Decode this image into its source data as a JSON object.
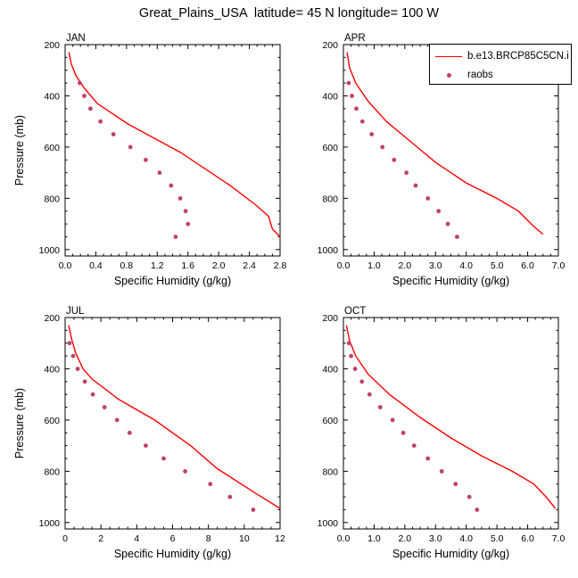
{
  "title": "Great_Plains_USA  latitude= 45 N longitude= 100 W",
  "colors": {
    "model": "#ff0000",
    "obs": "#c0406a"
  },
  "legend": {
    "placement": "top-right",
    "items": [
      {
        "label": "b.e13.BRCP85C5CN.i",
        "kind": "line",
        "color": "#ff0000"
      },
      {
        "label": "raobs",
        "kind": "marker",
        "color": "#c0406a"
      }
    ]
  },
  "chart_data": [
    {
      "type": "line",
      "panel_label": "JAN",
      "xlabel": "Specific Humidity (g/kg)",
      "ylabel": "Pressure (mb)",
      "xlim": [
        0,
        2.8
      ],
      "ylim": [
        1025,
        200
      ],
      "y_reversed": true,
      "xticks": [
        0,
        0.4,
        0.8,
        1.2,
        1.6,
        2.0,
        2.4,
        2.8
      ],
      "xticklabels": [
        "0.0",
        "0.4",
        "0.8",
        "1.2",
        "1.6",
        "2.0",
        "2.4",
        "2.8"
      ],
      "yticks": [
        200,
        400,
        600,
        800,
        1000
      ],
      "series": [
        {
          "name": "b.e13.BRCP85C5CN.i",
          "kind": "line",
          "x": [
            0.05,
            0.08,
            0.14,
            0.25,
            0.42,
            0.82,
            1.5,
            2.15,
            2.5,
            2.65,
            2.7,
            2.8
          ],
          "y": [
            230,
            275,
            320,
            370,
            430,
            510,
            620,
            750,
            830,
            870,
            920,
            950
          ]
        },
        {
          "name": "raobs",
          "kind": "marker",
          "x": [
            0.19,
            0.25,
            0.33,
            0.46,
            0.63,
            0.85,
            1.05,
            1.23,
            1.38,
            1.5,
            1.57,
            1.6,
            1.44
          ],
          "y": [
            350,
            400,
            450,
            500,
            550,
            600,
            650,
            700,
            750,
            800,
            850,
            900,
            950
          ]
        }
      ]
    },
    {
      "type": "line",
      "panel_label": "APR",
      "xlabel": "Specific Humidity (g/kg)",
      "ylabel": "",
      "xlim": [
        0,
        7
      ],
      "ylim": [
        1025,
        200
      ],
      "y_reversed": true,
      "xticks": [
        0,
        1,
        2,
        3,
        4,
        5,
        6,
        7
      ],
      "xticklabels": [
        "0.0",
        "1.0",
        "2.0",
        "3.0",
        "4.0",
        "5.0",
        "6.0",
        "7.0"
      ],
      "yticks": [
        200,
        400,
        600,
        800,
        1000
      ],
      "series": [
        {
          "name": "b.e13.BRCP85C5CN.i",
          "kind": "line",
          "x": [
            0.12,
            0.2,
            0.4,
            0.8,
            1.4,
            2.3,
            3.0,
            4.0,
            5.0,
            5.7,
            6.2,
            6.5
          ],
          "y": [
            230,
            290,
            350,
            420,
            500,
            590,
            660,
            740,
            800,
            850,
            910,
            940
          ]
        },
        {
          "name": "raobs",
          "kind": "marker",
          "x": [
            0.17,
            0.28,
            0.42,
            0.62,
            0.92,
            1.27,
            1.65,
            2.05,
            2.35,
            2.75,
            3.1,
            3.4,
            3.7
          ],
          "y": [
            350,
            400,
            450,
            500,
            550,
            600,
            650,
            700,
            750,
            800,
            850,
            900,
            950
          ]
        }
      ]
    },
    {
      "type": "line",
      "panel_label": "JUL",
      "xlabel": "Specific Humidity (g/kg)",
      "ylabel": "Pressure (mb)",
      "xlim": [
        0,
        12
      ],
      "ylim": [
        1025,
        200
      ],
      "y_reversed": true,
      "xticks": [
        0,
        2,
        4,
        6,
        8,
        10,
        12
      ],
      "xticklabels": [
        "0",
        "2",
        "4",
        "6",
        "8",
        "10",
        "12"
      ],
      "yticks": [
        200,
        400,
        600,
        800,
        1000
      ],
      "series": [
        {
          "name": "b.e13.BRCP85C5CN.i",
          "kind": "line",
          "x": [
            0.2,
            0.35,
            0.6,
            1.0,
            1.5,
            3.0,
            5.0,
            7.0,
            8.5,
            10.5,
            12.0
          ],
          "y": [
            230,
            280,
            340,
            400,
            440,
            520,
            600,
            700,
            790,
            880,
            945
          ]
        },
        {
          "name": "raobs",
          "kind": "marker",
          "x": [
            0.25,
            0.45,
            0.7,
            1.1,
            1.55,
            2.2,
            2.9,
            3.6,
            4.5,
            5.5,
            6.7,
            8.1,
            9.2,
            10.5
          ],
          "y": [
            300,
            350,
            400,
            450,
            500,
            550,
            600,
            650,
            700,
            750,
            800,
            850,
            900,
            950
          ]
        }
      ]
    },
    {
      "type": "line",
      "panel_label": "OCT",
      "xlabel": "Specific Humidity (g/kg)",
      "ylabel": "",
      "xlim": [
        0,
        7
      ],
      "ylim": [
        1025,
        200
      ],
      "y_reversed": true,
      "xticks": [
        0,
        1,
        2,
        3,
        4,
        5,
        6,
        7
      ],
      "xticklabels": [
        "0.0",
        "1.0",
        "2.0",
        "3.0",
        "4.0",
        "5.0",
        "6.0",
        "7.0"
      ],
      "yticks": [
        200,
        400,
        600,
        800,
        1000
      ],
      "series": [
        {
          "name": "b.e13.BRCP85C5CN.i",
          "kind": "line",
          "x": [
            0.1,
            0.2,
            0.4,
            0.8,
            1.5,
            2.5,
            3.5,
            4.5,
            5.5,
            6.2,
            6.6,
            6.9
          ],
          "y": [
            230,
            290,
            350,
            420,
            500,
            590,
            670,
            740,
            800,
            850,
            900,
            945
          ]
        },
        {
          "name": "raobs",
          "kind": "marker",
          "x": [
            0.18,
            0.25,
            0.38,
            0.6,
            0.85,
            1.2,
            1.6,
            1.95,
            2.3,
            2.75,
            3.2,
            3.65,
            4.1,
            4.35
          ],
          "y": [
            300,
            350,
            400,
            450,
            500,
            550,
            600,
            650,
            700,
            750,
            800,
            850,
            900,
            950
          ]
        }
      ]
    }
  ]
}
